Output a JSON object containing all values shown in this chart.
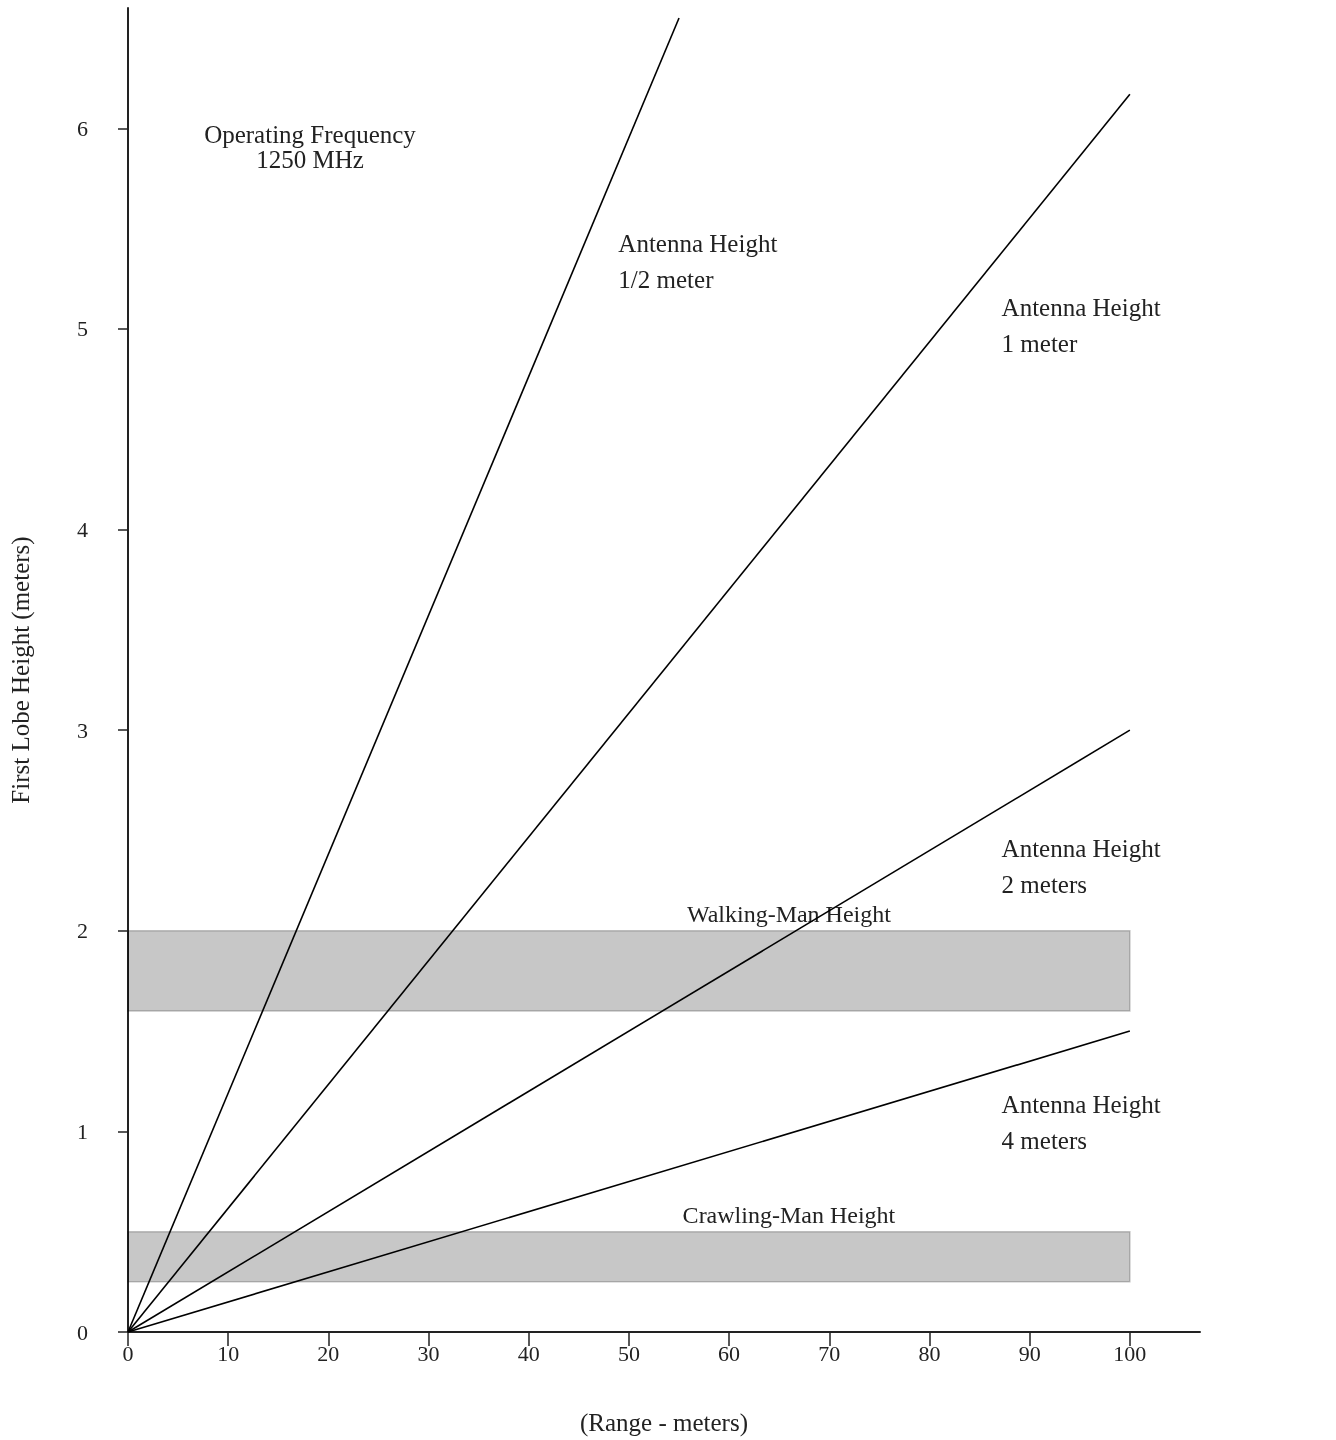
{
  "chart_data": {
    "type": "line",
    "xlabel": "(Range - meters)",
    "ylabel": "First Lobe Height (meters)",
    "annotations": [
      "Operating Frequency\n1250 MHz"
    ],
    "series": [
      {
        "name": "Antenna Height\n1/2 meter",
        "color": "#000000",
        "x": [
          0,
          55
        ],
        "values": [
          0,
          6.55
        ]
      },
      {
        "name": "Antenna Height\n1 meter",
        "color": "#000000",
        "x": [
          0,
          100
        ],
        "values": [
          0,
          6.17
        ]
      },
      {
        "name": "Antenna Height\n2 meters",
        "color": "#000000",
        "x": [
          0,
          100
        ],
        "values": [
          0,
          3.0
        ]
      },
      {
        "name": "Antenna Height\n4 meters",
        "color": "#000000",
        "x": [
          0,
          100
        ],
        "values": [
          0,
          1.5
        ]
      }
    ],
    "bands": [
      {
        "axis": "y",
        "from": 1.6,
        "to": 2.0,
        "label": "Walking-Man Height",
        "color": "#000000"
      },
      {
        "axis": "y",
        "from": 0.25,
        "to": 0.5,
        "label": "Crawling-Man Height",
        "color": "#000000"
      }
    ],
    "xlim": [
      0,
      107
    ],
    "xticks": [
      0,
      10,
      20,
      30,
      40,
      50,
      60,
      70,
      80,
      90,
      100
    ],
    "ylim": [
      0,
      6.6
    ],
    "yticks": [
      0,
      1,
      2,
      3,
      4,
      5,
      6
    ],
    "grid": false,
    "legend": false,
    "marker": "none",
    "line_style": "solid"
  }
}
